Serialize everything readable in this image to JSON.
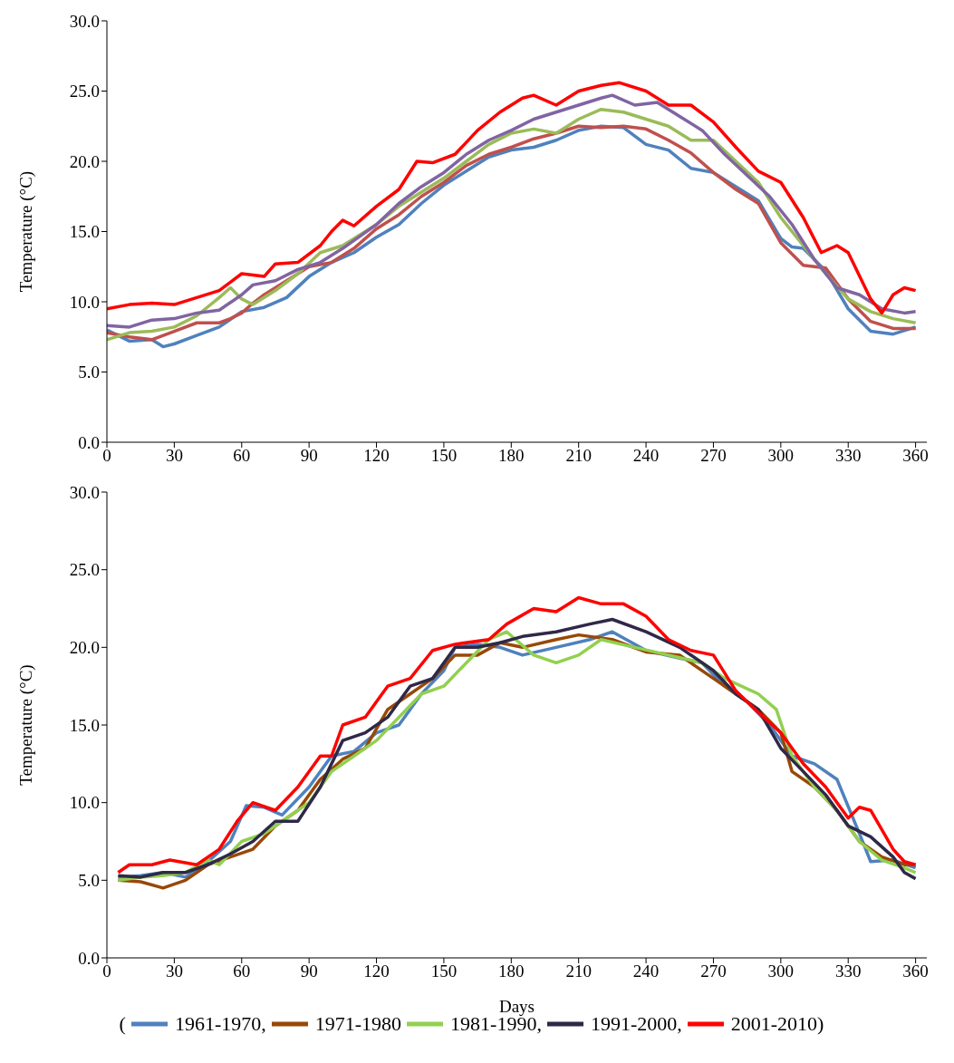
{
  "chart_data": [
    {
      "type": "line",
      "ylabel": "Temperature (°C)",
      "xlim": [
        0,
        365
      ],
      "xticks": [
        0,
        30,
        60,
        90,
        120,
        150,
        180,
        210,
        240,
        270,
        300,
        330,
        360
      ],
      "ylim": [
        0,
        30
      ],
      "yticks": [
        {
          "value": 0,
          "label": "0.0"
        },
        {
          "value": 5,
          "label": "5.0"
        },
        {
          "value": 10,
          "label": "10.0"
        },
        {
          "value": 15,
          "label": "15.0"
        },
        {
          "value": 20,
          "label": "20.0"
        },
        {
          "value": 25,
          "label": "25.0"
        },
        {
          "value": 30,
          "label": "30.0"
        }
      ],
      "grid": false,
      "legend": false,
      "marker": "none",
      "line_style": "solid",
      "series": [
        {
          "color": "#4f81bd",
          "x": [
            0,
            10,
            20,
            25,
            30,
            40,
            50,
            60,
            70,
            80,
            90,
            100,
            110,
            120,
            130,
            140,
            150,
            160,
            170,
            180,
            190,
            200,
            210,
            220,
            230,
            240,
            250,
            260,
            270,
            280,
            290,
            300,
            305,
            310,
            320,
            330,
            340,
            350,
            360
          ],
          "values": [
            8.0,
            7.2,
            7.3,
            6.8,
            7.0,
            7.6,
            8.2,
            9.3,
            9.6,
            10.3,
            11.8,
            12.8,
            13.5,
            14.6,
            15.5,
            17.0,
            18.3,
            19.3,
            20.3,
            20.8,
            21.0,
            21.5,
            22.2,
            22.5,
            22.4,
            21.2,
            20.8,
            19.5,
            19.2,
            18.2,
            17.2,
            14.5,
            13.9,
            13.8,
            12.2,
            9.5,
            7.9,
            7.7,
            8.2
          ]
        },
        {
          "color": "#c0504d",
          "x": [
            0,
            10,
            20,
            30,
            40,
            50,
            55,
            60,
            65,
            70,
            80,
            90,
            100,
            110,
            120,
            130,
            140,
            150,
            160,
            170,
            180,
            190,
            200,
            210,
            220,
            230,
            240,
            250,
            260,
            270,
            280,
            290,
            300,
            310,
            320,
            330,
            340,
            350,
            360
          ],
          "values": [
            7.8,
            7.5,
            7.3,
            7.9,
            8.5,
            8.5,
            8.8,
            9.2,
            9.9,
            10.5,
            11.5,
            12.5,
            12.8,
            13.8,
            15.2,
            16.2,
            17.5,
            18.5,
            19.7,
            20.5,
            21.0,
            21.6,
            22.0,
            22.5,
            22.4,
            22.5,
            22.3,
            21.5,
            20.6,
            19.2,
            18.0,
            17.0,
            14.2,
            12.6,
            12.4,
            10.2,
            8.6,
            8.1,
            8.1
          ]
        },
        {
          "color": "#9bbb59",
          "x": [
            0,
            10,
            20,
            30,
            40,
            50,
            55,
            60,
            65,
            75,
            85,
            95,
            105,
            120,
            130,
            140,
            150,
            160,
            170,
            180,
            190,
            200,
            210,
            220,
            230,
            240,
            250,
            260,
            270,
            280,
            290,
            300,
            310,
            320,
            330,
            340,
            350,
            360
          ],
          "values": [
            7.3,
            7.8,
            7.9,
            8.2,
            9.0,
            10.3,
            11.0,
            10.2,
            9.8,
            10.8,
            12.0,
            13.5,
            14.0,
            15.5,
            16.8,
            17.8,
            18.8,
            20.0,
            21.2,
            22.0,
            22.3,
            22.0,
            23.0,
            23.7,
            23.5,
            23.0,
            22.5,
            21.5,
            21.5,
            20.0,
            18.5,
            16.0,
            14.0,
            12.0,
            10.2,
            9.3,
            8.8,
            8.5
          ]
        },
        {
          "color": "#8064a2",
          "x": [
            0,
            10,
            20,
            30,
            40,
            50,
            60,
            65,
            75,
            85,
            95,
            105,
            120,
            130,
            140,
            150,
            160,
            170,
            180,
            190,
            200,
            210,
            220,
            225,
            235,
            245,
            255,
            265,
            275,
            285,
            295,
            305,
            315,
            325,
            335,
            345,
            355,
            360
          ],
          "values": [
            8.3,
            8.2,
            8.7,
            8.8,
            9.2,
            9.4,
            10.5,
            11.2,
            11.5,
            12.3,
            12.8,
            13.8,
            15.5,
            17.0,
            18.2,
            19.2,
            20.5,
            21.5,
            22.2,
            23.0,
            23.5,
            24.0,
            24.5,
            24.7,
            24.0,
            24.2,
            23.2,
            22.2,
            20.5,
            19.0,
            17.5,
            15.5,
            13.0,
            11.0,
            10.5,
            9.5,
            9.2,
            9.3
          ]
        },
        {
          "color": "#ff0000",
          "x": [
            0,
            10,
            20,
            30,
            40,
            50,
            60,
            70,
            75,
            85,
            95,
            100,
            105,
            110,
            120,
            130,
            138,
            145,
            155,
            165,
            175,
            185,
            190,
            200,
            210,
            220,
            228,
            240,
            250,
            260,
            270,
            280,
            290,
            300,
            310,
            318,
            325,
            330,
            340,
            345,
            350,
            355,
            360
          ],
          "values": [
            9.5,
            9.8,
            9.9,
            9.8,
            10.3,
            10.8,
            12.0,
            11.8,
            12.7,
            12.8,
            14.0,
            15.0,
            15.8,
            15.4,
            16.8,
            18.0,
            20.0,
            19.9,
            20.5,
            22.2,
            23.5,
            24.5,
            24.7,
            24.0,
            25.0,
            25.4,
            25.6,
            25.0,
            24.0,
            24.0,
            22.8,
            21.0,
            19.3,
            18.5,
            16.0,
            13.5,
            14.0,
            13.5,
            10.2,
            9.2,
            10.5,
            11.0,
            10.8
          ]
        }
      ]
    },
    {
      "type": "line",
      "xlabel": "Days",
      "ylabel": "Temperature (°C)",
      "legend_title": "(",
      "xlim": [
        0,
        365
      ],
      "xticks": [
        0,
        30,
        60,
        90,
        120,
        150,
        180,
        210,
        240,
        270,
        300,
        330,
        360
      ],
      "ylim": [
        0,
        30
      ],
      "yticks": [
        {
          "value": 0,
          "label": "0.0"
        },
        {
          "value": 5,
          "label": "5.0"
        },
        {
          "value": 10,
          "label": "10.0"
        },
        {
          "value": 15,
          "label": "15.0"
        },
        {
          "value": 20,
          "label": "20.0"
        },
        {
          "value": 25,
          "label": "25.0"
        },
        {
          "value": 30,
          "label": "30.0"
        }
      ],
      "grid": false,
      "legend": "bottom",
      "marker": "none",
      "line_style": "solid",
      "series": [
        {
          "name": "1961-1970,",
          "color": "#4f81bd",
          "x": [
            5,
            15,
            25,
            35,
            45,
            55,
            62,
            70,
            78,
            90,
            100,
            110,
            120,
            130,
            140,
            150,
            155,
            165,
            175,
            185,
            200,
            215,
            225,
            240,
            255,
            265,
            275,
            285,
            295,
            305,
            315,
            325,
            335,
            340,
            350,
            360
          ],
          "values": [
            5.2,
            5.3,
            5.5,
            5.2,
            6.2,
            7.5,
            9.8,
            9.7,
            9.2,
            11.0,
            13.0,
            13.3,
            14.5,
            15.0,
            17.0,
            18.5,
            20.0,
            20.2,
            20.0,
            19.5,
            20.0,
            20.5,
            21.0,
            19.8,
            19.3,
            19.0,
            17.5,
            16.5,
            15.0,
            13.0,
            12.5,
            11.5,
            8.0,
            6.2,
            6.3,
            5.8
          ]
        },
        {
          "name": "1971-1980",
          "color": "#984807",
          "x": [
            5,
            15,
            25,
            35,
            45,
            55,
            65,
            75,
            85,
            95,
            105,
            115,
            125,
            135,
            145,
            155,
            165,
            175,
            185,
            200,
            210,
            225,
            240,
            255,
            270,
            280,
            290,
            300,
            305,
            315,
            325,
            335,
            345,
            355,
            360
          ],
          "values": [
            5.0,
            4.9,
            4.5,
            5.0,
            6.0,
            6.5,
            7.0,
            8.5,
            9.5,
            11.5,
            12.8,
            13.5,
            16.0,
            17.0,
            18.0,
            19.5,
            19.5,
            20.3,
            20.0,
            20.5,
            20.8,
            20.5,
            19.7,
            19.5,
            18.0,
            17.0,
            16.0,
            14.5,
            12.0,
            11.0,
            9.5,
            7.5,
            6.5,
            6.0,
            6.0
          ]
        },
        {
          "name": "1981-1990,",
          "color": "#92d050",
          "x": [
            5,
            15,
            25,
            35,
            45,
            50,
            60,
            70,
            80,
            90,
            100,
            110,
            120,
            130,
            140,
            150,
            160,
            170,
            178,
            190,
            200,
            210,
            220,
            235,
            250,
            265,
            275,
            290,
            298,
            305,
            315,
            325,
            335,
            345,
            355,
            360
          ],
          "values": [
            5.0,
            5.2,
            5.3,
            5.5,
            6.3,
            6.0,
            7.5,
            8.0,
            9.0,
            10.0,
            12.0,
            13.0,
            14.0,
            15.5,
            17.0,
            17.5,
            19.0,
            20.5,
            21.0,
            19.5,
            19.0,
            19.5,
            20.5,
            20.0,
            19.5,
            19.0,
            18.0,
            17.0,
            16.0,
            13.0,
            11.0,
            9.5,
            7.5,
            6.3,
            5.8,
            5.5
          ]
        },
        {
          "name": "1991-2000,",
          "color": "#302848",
          "x": [
            5,
            15,
            25,
            35,
            45,
            55,
            65,
            75,
            85,
            95,
            105,
            115,
            125,
            135,
            145,
            155,
            165,
            175,
            185,
            200,
            215,
            225,
            240,
            255,
            270,
            280,
            290,
            300,
            310,
            320,
            330,
            340,
            350,
            355,
            360
          ],
          "values": [
            5.3,
            5.2,
            5.5,
            5.5,
            6.0,
            6.7,
            7.5,
            8.8,
            8.8,
            11.0,
            14.0,
            14.5,
            15.5,
            17.5,
            18.0,
            20.0,
            20.0,
            20.3,
            20.7,
            21.0,
            21.5,
            21.8,
            21.0,
            20.0,
            18.5,
            17.0,
            16.0,
            13.5,
            12.0,
            10.5,
            8.5,
            7.8,
            6.5,
            5.5,
            5.1
          ]
        },
        {
          "name": "2001-2010)",
          "color": "#ff0000",
          "x": [
            5,
            10,
            20,
            28,
            40,
            50,
            58,
            65,
            75,
            85,
            95,
            100,
            105,
            115,
            125,
            135,
            145,
            155,
            170,
            178,
            190,
            200,
            210,
            220,
            230,
            240,
            250,
            260,
            270,
            280,
            290,
            300,
            310,
            320,
            330,
            335,
            340,
            350,
            355,
            360
          ],
          "values": [
            5.5,
            6.0,
            6.0,
            6.3,
            6.0,
            7.0,
            8.8,
            10.0,
            9.5,
            11.0,
            13.0,
            13.0,
            15.0,
            15.5,
            17.5,
            18.0,
            19.8,
            20.2,
            20.5,
            21.5,
            22.5,
            22.3,
            23.2,
            22.8,
            22.8,
            22.0,
            20.5,
            19.8,
            19.5,
            17.2,
            15.8,
            14.5,
            12.5,
            11.0,
            9.0,
            9.7,
            9.5,
            7.0,
            6.2,
            6.0
          ]
        }
      ]
    }
  ]
}
